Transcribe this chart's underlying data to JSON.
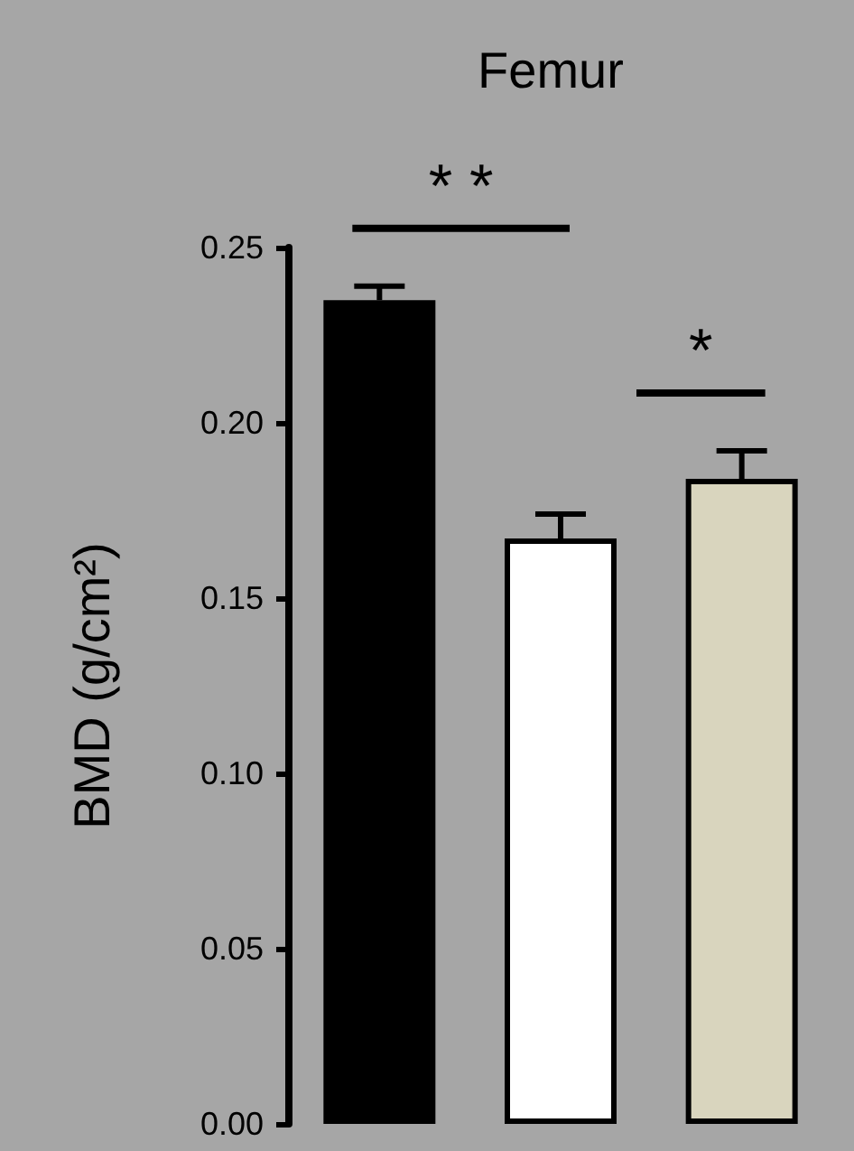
{
  "chart_data": {
    "type": "bar",
    "title": "Femur",
    "ylabel": "BMD (g/cm²)",
    "categories": [
      null,
      null,
      null
    ],
    "values": [
      0.235,
      0.167,
      0.184
    ],
    "colors": [
      "#000000",
      "#ffffff",
      "#d9d5be"
    ],
    "errors": [
      [
        0.235,
        0.239
      ],
      [
        0.167,
        0.174
      ],
      [
        0.184,
        0.192
      ]
    ],
    "ylim": [
      0,
      0.25
    ],
    "yticks": [
      {
        "value": 0,
        "label": "0.00"
      },
      0.05,
      {
        "value": 0.1,
        "label": "0.10"
      },
      0.15,
      {
        "value": 0.2,
        "label": "0.20"
      },
      0.25
    ],
    "annotations": [
      "* *",
      "*"
    ],
    "grid": false
  }
}
